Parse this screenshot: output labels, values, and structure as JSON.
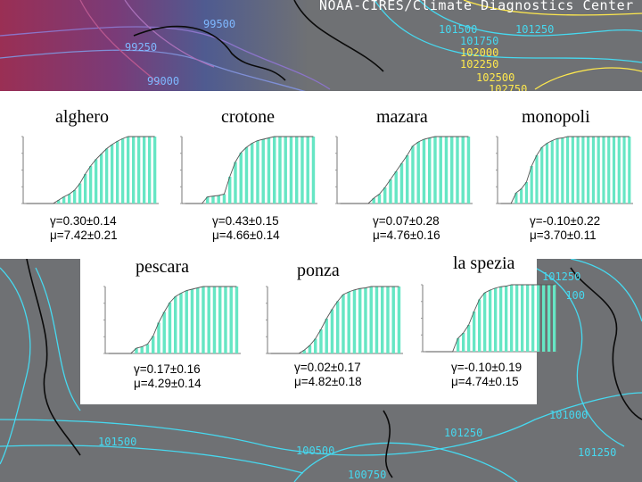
{
  "header": {
    "banner": "NOAA-CIRES/Climate Diagnostics Center"
  },
  "isobars": {
    "labels": [
      {
        "text": "99500",
        "color": "#7fb8ff"
      },
      {
        "text": "99250",
        "color": "#7fb8ff"
      },
      {
        "text": "99000",
        "color": "#7fb8ff"
      },
      {
        "text": "101500",
        "color": "#46d9f0"
      },
      {
        "text": "101750",
        "color": "#46d9f0"
      },
      {
        "text": "101250",
        "color": "#46d9f0"
      },
      {
        "text": "102000",
        "color": "#ffe94d"
      },
      {
        "text": "102250",
        "color": "#ffe94d"
      },
      {
        "text": "102500",
        "color": "#ffe94d"
      },
      {
        "text": "102750",
        "color": "#ffe94d"
      },
      {
        "text": "101250",
        "color": "#46d9f0"
      },
      {
        "text": "100",
        "color": "#46d9f0"
      },
      {
        "text": "101500",
        "color": "#46d9f0"
      },
      {
        "text": "101000",
        "color": "#46d9f0"
      },
      {
        "text": "100500",
        "color": "#46d9f0"
      },
      {
        "text": "101250",
        "color": "#46d9f0"
      },
      {
        "text": "100750",
        "color": "#46d9f0"
      },
      {
        "text": "101250",
        "color": "#46d9f0"
      }
    ]
  },
  "chart_data": [
    {
      "type": "bar",
      "title": "alghero",
      "gamma": "γ=0.30±0.14",
      "mu": "μ=7.42±0.21",
      "values": [
        0,
        0,
        0,
        0,
        0,
        0,
        0.05,
        0.1,
        0.14,
        0.2,
        0.3,
        0.44,
        0.56,
        0.66,
        0.74,
        0.82,
        0.88,
        0.93,
        0.97,
        1,
        1,
        1,
        1,
        1,
        1
      ],
      "ylim": [
        0,
        1
      ]
    },
    {
      "type": "bar",
      "title": "crotone",
      "gamma": "γ=0.43±0.15",
      "mu": "μ=4.66±0.14",
      "values": [
        0,
        0,
        0,
        0,
        0.1,
        0.11,
        0.12,
        0.14,
        0.4,
        0.62,
        0.76,
        0.84,
        0.9,
        0.94,
        0.96,
        0.98,
        1,
        1,
        1,
        1,
        1,
        1,
        1,
        1
      ],
      "ylim": [
        0,
        1
      ]
    },
    {
      "type": "bar",
      "title": "mazara",
      "gamma": "γ=0.07±0.28",
      "mu": "μ=4.76±0.16",
      "values": [
        0,
        0,
        0,
        0,
        0,
        0,
        0.08,
        0.14,
        0.24,
        0.36,
        0.48,
        0.6,
        0.72,
        0.86,
        0.92,
        0.96,
        0.98,
        1,
        1,
        1,
        1,
        1,
        1,
        1
      ],
      "ylim": [
        0,
        1
      ]
    },
    {
      "type": "bar",
      "title": "monopoli",
      "gamma": "γ=-0.10±0.22",
      "mu": "μ=3.70±0.11",
      "values": [
        0,
        0,
        0,
        0.16,
        0.22,
        0.32,
        0.56,
        0.72,
        0.84,
        0.9,
        0.94,
        0.97,
        0.98,
        1,
        1,
        1,
        1,
        1,
        1,
        1,
        1,
        1,
        1,
        1,
        1,
        1
      ],
      "ylim": [
        0,
        1
      ]
    },
    {
      "type": "bar",
      "title": "pescara",
      "gamma": "γ=0.17±0.16",
      "mu": "μ=4.29±0.14",
      "values": [
        0,
        0,
        0,
        0,
        0,
        0.08,
        0.1,
        0.14,
        0.26,
        0.46,
        0.62,
        0.76,
        0.85,
        0.9,
        0.94,
        0.96,
        0.98,
        1,
        1,
        1,
        1,
        1,
        1,
        1
      ],
      "ylim": [
        0,
        1
      ]
    },
    {
      "type": "bar",
      "title": "ponza",
      "gamma": "γ=0.02±0.17",
      "mu": "μ=4.82±0.18",
      "values": [
        0,
        0,
        0,
        0,
        0,
        0,
        0.05,
        0.12,
        0.22,
        0.36,
        0.52,
        0.66,
        0.78,
        0.88,
        0.92,
        0.95,
        0.97,
        0.98,
        1,
        1,
        1,
        1,
        1,
        1
      ],
      "ylim": [
        0,
        1
      ]
    },
    {
      "type": "bar",
      "title": "la spezia",
      "gamma": "γ=-0.10±0.19",
      "mu": "μ=4.74±0.15",
      "values": [
        0,
        0,
        0,
        0,
        0,
        0,
        0.2,
        0.28,
        0.4,
        0.6,
        0.78,
        0.88,
        0.92,
        0.95,
        0.97,
        0.98,
        1,
        1,
        1,
        1,
        1,
        1,
        1,
        1,
        1
      ],
      "ylim": [
        0,
        1
      ]
    }
  ]
}
